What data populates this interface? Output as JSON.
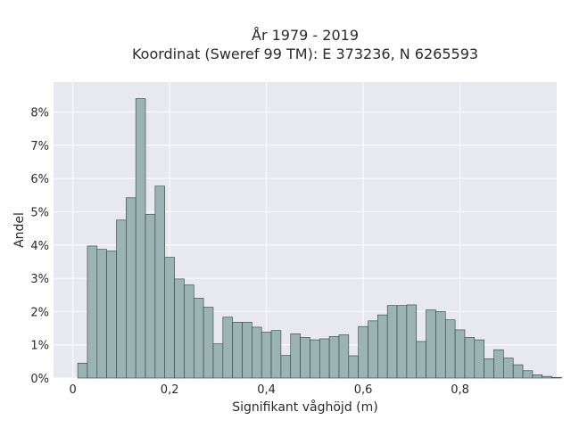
{
  "chart_data": {
    "type": "bar",
    "title_line1": "År 1979 - 2019",
    "title_line2": "Koordinat (Sweref 99 TM): E 373236, N 6265593",
    "xlabel": "Signifikant våghöjd (m)",
    "ylabel": "Andel",
    "xlim": [
      -0.04,
      1.0
    ],
    "ylim": [
      0,
      8.9
    ],
    "x_ticks": [
      0,
      0.2,
      0.4,
      0.6,
      0.8
    ],
    "x_tick_labels": [
      "0",
      "0,2",
      "0,4",
      "0,6",
      "0,8"
    ],
    "y_ticks": [
      0,
      1,
      2,
      3,
      4,
      5,
      6,
      7,
      8
    ],
    "y_tick_labels": [
      "0%",
      "1%",
      "2%",
      "3%",
      "4%",
      "5%",
      "6%",
      "7%",
      "8%"
    ],
    "grid": true,
    "bin_width": 0.02,
    "bin_start": 0.01,
    "values": [
      0.45,
      3.97,
      3.87,
      3.82,
      4.75,
      5.42,
      8.4,
      4.92,
      5.77,
      3.63,
      2.98,
      2.8,
      2.4,
      2.13,
      1.03,
      1.83,
      1.68,
      1.68,
      1.53,
      1.38,
      1.43,
      0.68,
      1.33,
      1.22,
      1.15,
      1.18,
      1.25,
      1.3,
      0.67,
      1.55,
      1.72,
      1.9,
      2.18,
      2.18,
      2.2,
      1.1,
      2.05,
      2.0,
      1.75,
      1.45,
      1.22,
      1.15,
      0.58,
      0.85,
      0.6,
      0.4,
      0.22,
      0.1,
      0.05,
      0.02
    ],
    "colors": {
      "bar_fill": "#9bb3b3",
      "bar_stroke": "#2f3f3f",
      "plot_bg": "#e8e8f0",
      "grid": "#ffffff"
    }
  }
}
